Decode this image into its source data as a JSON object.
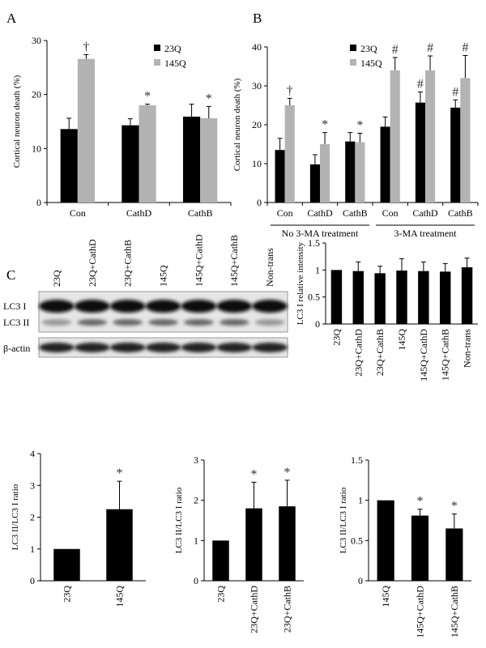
{
  "panels": [
    "A",
    "B",
    "C"
  ],
  "blot": {
    "lanes": [
      "23Q",
      "23Q+CathD",
      "23Q+CathB",
      "145Q",
      "145Q+CathD",
      "145Q+CathB",
      "Non-trans"
    ],
    "rows": [
      "LC3 I",
      "LC3 II",
      "β-actin"
    ]
  },
  "chart_data": [
    {
      "type": "bar",
      "ylabel": "Cortical neuron death (%)",
      "categories": [
        "Con",
        "CathD",
        "CathB"
      ],
      "series": [
        {
          "name": "23Q",
          "color": "#000000",
          "values": [
            13.6,
            14.3,
            15.9
          ],
          "errors": [
            2,
            1.2,
            2.3
          ],
          "annotations": [
            null,
            null,
            null
          ]
        },
        {
          "name": "145Q",
          "color": "#b3b3b3",
          "values": [
            26.6,
            18,
            15.6
          ],
          "errors": [
            0.8,
            0.2,
            2.2
          ],
          "annotations": [
            "†",
            "*",
            "*"
          ]
        }
      ],
      "ylim": [
        0,
        30
      ],
      "yticks": [
        0,
        10,
        20,
        30
      ]
    },
    {
      "type": "bar",
      "ylabel": "Cortical neuron death (%)",
      "categories": [
        "Con",
        "CathD",
        "CathB",
        "Con",
        "CathD",
        "CathB"
      ],
      "group_labels": [
        "No 3-MA treatment",
        "3-MA treatment"
      ],
      "series": [
        {
          "name": "23Q",
          "color": "#000000",
          "values": [
            13.5,
            9.8,
            15.7,
            19.5,
            25.7,
            24.4
          ],
          "errors": [
            3,
            2.5,
            2.3,
            2.5,
            2.7,
            2
          ],
          "annotations": [
            null,
            null,
            null,
            null,
            "#",
            "#"
          ]
        },
        {
          "name": "145Q",
          "color": "#b3b3b3",
          "values": [
            25,
            15,
            15.5,
            34,
            34,
            32
          ],
          "errors": [
            1.8,
            3,
            2.3,
            3.3,
            3.7,
            5.8
          ],
          "annotations": [
            "†",
            "*",
            "*",
            "#",
            "#",
            "#"
          ]
        }
      ],
      "ylim": [
        0,
        40
      ],
      "yticks": [
        0,
        10,
        20,
        30,
        40
      ]
    },
    {
      "type": "bar",
      "ylabel": "LC3 I relative intensity",
      "categories": [
        "23Q",
        "23Q+CathD",
        "23Q+CathB",
        "145Q",
        "145Q+CathD",
        "145Q+CathB",
        "Non-trans"
      ],
      "values": [
        1,
        0.98,
        0.94,
        0.99,
        0.98,
        0.97,
        1.05
      ],
      "errors": [
        null,
        0.17,
        0.13,
        0.22,
        0.17,
        0.15,
        0.17
      ],
      "color": "#000000",
      "ylim": [
        0,
        1.5
      ],
      "yticks": [
        0,
        0.5,
        1,
        1.5
      ]
    },
    {
      "type": "bar",
      "ylabel": "LC3 II/LC3 I ratio",
      "categories": [
        "23Q",
        "145Q"
      ],
      "values": [
        1,
        2.25
      ],
      "errors": [
        null,
        0.88
      ],
      "annotations": [
        null,
        "*"
      ],
      "color": "#000000",
      "ylim": [
        0,
        4
      ],
      "yticks": [
        0,
        1,
        2,
        3,
        4
      ]
    },
    {
      "type": "bar",
      "ylabel": "LC3 II/LC3 I ratio",
      "categories": [
        "23Q",
        "23Q+CathD",
        "23Q+CathB"
      ],
      "values": [
        1,
        1.8,
        1.85
      ],
      "errors": [
        null,
        0.65,
        0.65
      ],
      "annotations": [
        null,
        "*",
        "*"
      ],
      "color": "#000000",
      "ylim": [
        0,
        3
      ],
      "yticks": [
        0,
        1,
        2,
        3
      ]
    },
    {
      "type": "bar",
      "ylabel": "LC3 II/LC3 I ratio",
      "categories": [
        "145Q",
        "145Q+CathD",
        "145Q+CathB"
      ],
      "values": [
        1,
        0.81,
        0.65
      ],
      "errors": [
        null,
        0.08,
        0.18
      ],
      "annotations": [
        null,
        "*",
        "*"
      ],
      "color": "#000000",
      "ylim": [
        0,
        1.5
      ],
      "yticks": [
        0,
        0.5,
        1,
        1.5
      ]
    }
  ]
}
